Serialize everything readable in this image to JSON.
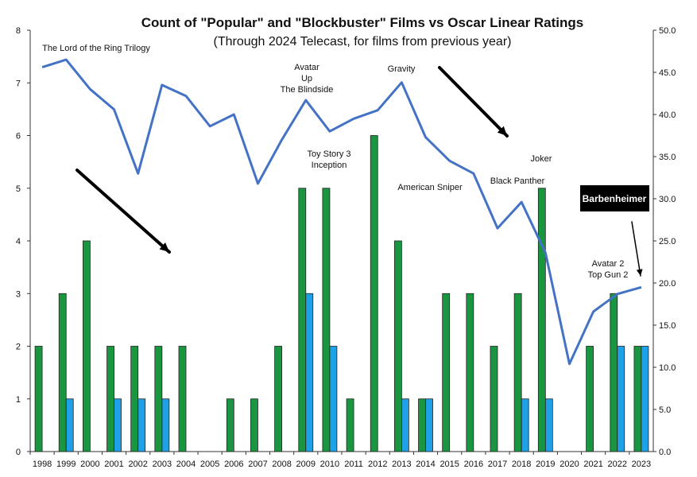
{
  "chart_data": {
    "type": "bar",
    "title": "Count of \"Popular\" and \"Blockbuster\" Films vs Oscar Linear Ratings",
    "subtitle": "(Through 2024 Telecast, for films from previous year)",
    "categories": [
      "1998",
      "1999",
      "2000",
      "2001",
      "2002",
      "2003",
      "2004",
      "2005",
      "2006",
      "2007",
      "2008",
      "2009",
      "2010",
      "2011",
      "2012",
      "2013",
      "2014",
      "2015",
      "2016",
      "2017",
      "2018",
      "2019",
      "2020",
      "2021",
      "2022",
      "2023"
    ],
    "series": [
      {
        "kind": "bar",
        "axis": "left",
        "color": "#1a9641",
        "values": [
          2,
          3,
          4,
          2,
          2,
          2,
          2,
          0,
          1,
          1,
          2,
          5,
          5,
          1,
          6,
          4,
          1,
          3,
          3,
          2,
          3,
          5,
          0,
          2,
          3,
          2
        ]
      },
      {
        "kind": "bar",
        "axis": "left",
        "color": "#1ea1e6",
        "values": [
          0,
          1,
          0,
          1,
          1,
          1,
          0,
          0,
          0,
          0,
          0,
          3,
          2,
          0,
          0,
          1,
          1,
          0,
          0,
          0,
          1,
          1,
          0,
          0,
          2,
          2
        ]
      },
      {
        "kind": "line",
        "axis": "right",
        "color": "#4472c4",
        "values": [
          45.6,
          46.5,
          43.0,
          40.6,
          33.0,
          43.5,
          42.2,
          38.6,
          40.0,
          31.8,
          37.0,
          41.7,
          38.0,
          39.5,
          40.5,
          43.8,
          37.3,
          34.5,
          33.0,
          26.5,
          29.6,
          23.6,
          10.4,
          16.6,
          18.7,
          19.5
        ]
      }
    ],
    "y_left": {
      "min": 0,
      "max": 8,
      "ticks": [
        "0",
        "1",
        "2",
        "3",
        "4",
        "5",
        "6",
        "7",
        "8"
      ]
    },
    "y_right": {
      "min": 0,
      "max": 50,
      "ticks": [
        "0.0",
        "5.0",
        "10.0",
        "15.0",
        "20.0",
        "25.0",
        "30.0",
        "35.0",
        "40.0",
        "45.0",
        "50.0"
      ]
    },
    "grid": false,
    "legend": "none",
    "annotations": [
      {
        "lines": [
          "The Lord of the Ring Trilogy"
        ]
      },
      {
        "lines": [
          "Avatar",
          "Up",
          "The Blindside"
        ]
      },
      {
        "lines": [
          "Gravity"
        ]
      },
      {
        "lines": [
          "Toy Story 3",
          "Inception"
        ]
      },
      {
        "lines": [
          "American Sniper"
        ]
      },
      {
        "lines": [
          "Black Panther"
        ]
      },
      {
        "lines": [
          "Joker"
        ]
      },
      {
        "lines": [
          "Avatar 2",
          "Top Gun 2"
        ]
      },
      {
        "lines": [
          "Barbenheimer"
        ],
        "boxed": true
      }
    ],
    "arrows": [
      "down-right trend arrow",
      "down-right trend arrow",
      "arrow to 2023 point"
    ]
  }
}
